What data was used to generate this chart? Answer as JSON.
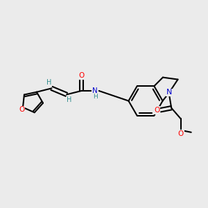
{
  "background_color": "#ebebeb",
  "bond_color": "#000000",
  "bond_width": 1.5,
  "atom_colors": {
    "O": "#ff0000",
    "N": "#0000cc",
    "H": "#2e8b8b"
  },
  "figsize": [
    3.0,
    3.0
  ],
  "dpi": 100
}
